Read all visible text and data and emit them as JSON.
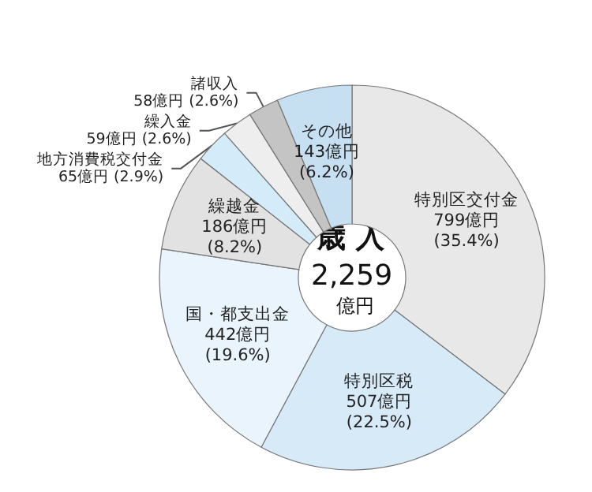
{
  "chart_data": {
    "type": "donut",
    "title": "歳 入",
    "annotations": [
      "2,259",
      "億円"
    ],
    "categories": [
      "特別区交付金",
      "特別区税",
      "国・都支出金",
      "繰越金",
      "地方消費税交付金",
      "繰入金",
      "諸収入",
      "その他"
    ],
    "values": [
      799,
      507,
      442,
      186,
      65,
      59,
      58,
      143
    ],
    "value_labels": [
      "799億円 (35.4%)",
      "507億円 (22.5%)",
      "442億円 (19.6%)",
      "186億円 (8.2%)",
      "65億円 (2.9%)",
      "59億円 (2.6%)",
      "58億円 (2.6%)",
      "143億円 (6.2%)"
    ],
    "colors": [
      "#e8e8e8",
      "#d6eaf8",
      "#e9f4fc",
      "#e2e2e2",
      "#d4ecf9",
      "#eeeeee",
      "#c4c4c4",
      "#c6e0f2"
    ],
    "legend": false
  }
}
